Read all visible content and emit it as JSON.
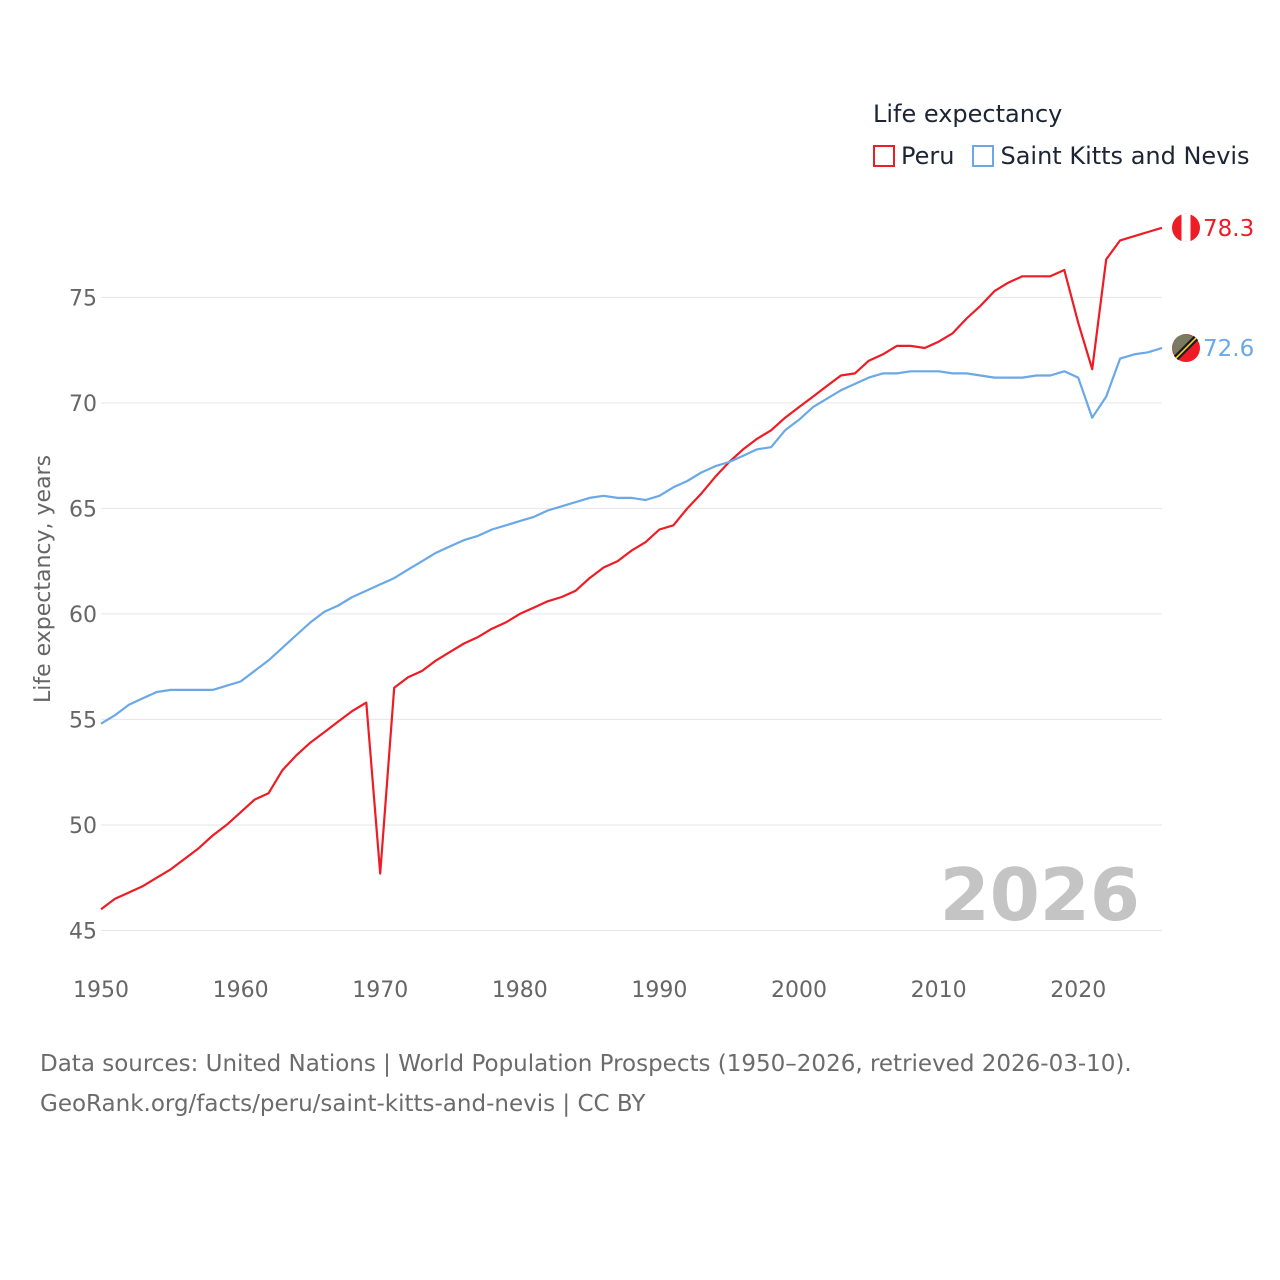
{
  "legend": {
    "title": "Life expectancy",
    "items": [
      {
        "label": "Peru",
        "color": "#ee1c25"
      },
      {
        "label": "Saint Kitts and Nevis",
        "color": "#6aa8e8"
      }
    ]
  },
  "chart_data": {
    "type": "line",
    "title": "Life expectancy",
    "ylabel": "Life expectancy, years",
    "xlabel": "",
    "xlim": [
      1950,
      2026
    ],
    "ylim": [
      44.5,
      79
    ],
    "xticks": [
      1950,
      1960,
      1970,
      1980,
      1990,
      2000,
      2010,
      2020
    ],
    "yticks": [
      45,
      50,
      55,
      60,
      65,
      70,
      75
    ],
    "year_watermark": "2026",
    "series": [
      {
        "name": "Peru",
        "color": "#ee1c25",
        "end_label": "78.3",
        "x": [
          1950,
          1951,
          1952,
          1953,
          1954,
          1955,
          1956,
          1957,
          1958,
          1959,
          1960,
          1961,
          1962,
          1963,
          1964,
          1965,
          1966,
          1967,
          1968,
          1969,
          1970,
          1971,
          1972,
          1973,
          1974,
          1975,
          1976,
          1977,
          1978,
          1979,
          1980,
          1981,
          1982,
          1983,
          1984,
          1985,
          1986,
          1987,
          1988,
          1989,
          1990,
          1991,
          1992,
          1993,
          1994,
          1995,
          1996,
          1997,
          1998,
          1999,
          2000,
          2001,
          2002,
          2003,
          2004,
          2005,
          2006,
          2007,
          2008,
          2009,
          2010,
          2011,
          2012,
          2013,
          2014,
          2015,
          2016,
          2017,
          2018,
          2019,
          2020,
          2021,
          2022,
          2023,
          2024,
          2025,
          2026
        ],
        "y": [
          46.0,
          46.5,
          46.8,
          47.1,
          47.5,
          47.9,
          48.4,
          48.9,
          49.5,
          50.0,
          50.6,
          51.2,
          51.5,
          52.6,
          53.3,
          53.9,
          54.4,
          54.9,
          55.4,
          55.8,
          47.7,
          56.5,
          57.0,
          57.3,
          57.8,
          58.2,
          58.6,
          58.9,
          59.3,
          59.6,
          60.0,
          60.3,
          60.6,
          60.8,
          61.1,
          61.7,
          62.2,
          62.5,
          63.0,
          63.4,
          64.0,
          64.2,
          65.0,
          65.7,
          66.5,
          67.2,
          67.8,
          68.3,
          68.7,
          69.3,
          69.8,
          70.3,
          70.8,
          71.3,
          71.4,
          72.0,
          72.3,
          72.7,
          72.7,
          72.6,
          72.9,
          73.3,
          74.0,
          74.6,
          75.3,
          75.7,
          76.0,
          76.0,
          76.0,
          76.3,
          73.8,
          71.6,
          76.8,
          77.7,
          77.9,
          78.1,
          78.3
        ]
      },
      {
        "name": "Saint Kitts and Nevis",
        "color": "#6aa8e8",
        "end_label": "72.6",
        "x": [
          1950,
          1951,
          1952,
          1953,
          1954,
          1955,
          1956,
          1957,
          1958,
          1959,
          1960,
          1961,
          1962,
          1963,
          1964,
          1965,
          1966,
          1967,
          1968,
          1969,
          1970,
          1971,
          1972,
          1973,
          1974,
          1975,
          1976,
          1977,
          1978,
          1979,
          1980,
          1981,
          1982,
          1983,
          1984,
          1985,
          1986,
          1987,
          1988,
          1989,
          1990,
          1991,
          1992,
          1993,
          1994,
          1995,
          1996,
          1997,
          1998,
          1999,
          2000,
          2001,
          2002,
          2003,
          2004,
          2005,
          2006,
          2007,
          2008,
          2009,
          2010,
          2011,
          2012,
          2013,
          2014,
          2015,
          2016,
          2017,
          2018,
          2019,
          2020,
          2021,
          2022,
          2023,
          2024,
          2025,
          2026
        ],
        "y": [
          54.8,
          55.2,
          55.7,
          56.0,
          56.3,
          56.4,
          56.4,
          56.4,
          56.4,
          56.6,
          56.8,
          57.3,
          57.8,
          58.4,
          59.0,
          59.6,
          60.1,
          60.4,
          60.8,
          61.1,
          61.4,
          61.7,
          62.1,
          62.5,
          62.9,
          63.2,
          63.5,
          63.7,
          64.0,
          64.2,
          64.4,
          64.6,
          64.9,
          65.1,
          65.3,
          65.5,
          65.6,
          65.5,
          65.5,
          65.4,
          65.6,
          66.0,
          66.3,
          66.7,
          67.0,
          67.2,
          67.5,
          67.8,
          67.9,
          68.7,
          69.2,
          69.8,
          70.2,
          70.6,
          70.9,
          71.2,
          71.4,
          71.4,
          71.5,
          71.5,
          71.5,
          71.4,
          71.4,
          71.3,
          71.2,
          71.2,
          71.2,
          71.3,
          71.3,
          71.5,
          71.2,
          69.3,
          70.3,
          72.1,
          72.3,
          72.4,
          72.6
        ]
      }
    ]
  },
  "footer": {
    "line1": "Data sources: United Nations | World Population Prospects (1950–2026, retrieved 2026-03-10).",
    "line2": "GeoRank.org/facts/peru/saint-kitts-and-nevis | CC BY"
  }
}
